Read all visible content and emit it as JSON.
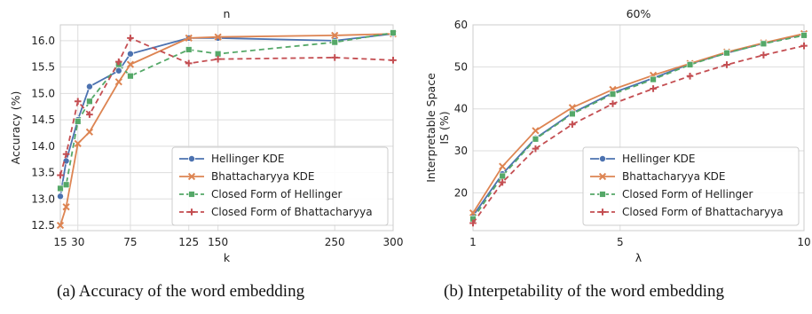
{
  "colors": {
    "hellinger_kde": "#4c72b0",
    "bhattacharyya_kde": "#dd8452",
    "closed_hellinger": "#55a868",
    "closed_bhattacharyya": "#c44e52",
    "plot_bg": "#ffffff",
    "grid": "#dddddd"
  },
  "legend_labels": [
    "Hellinger KDE",
    "Bhattacharyya KDE",
    "Closed Form of Hellinger",
    "Closed Form of Bhattacharyya"
  ],
  "captions": {
    "left": "(a) Accuracy of the word embedding",
    "right": "(b) Interpetability of the word embedding"
  },
  "chart_data": [
    {
      "type": "line",
      "title": "n",
      "xlabel": "k",
      "ylabel": "Accuracy (%)",
      "xlim": [
        15,
        300
      ],
      "ylim": [
        12.4,
        16.3
      ],
      "xticks": [
        15,
        30,
        75,
        125,
        150,
        250,
        300
      ],
      "yticks": [
        12.5,
        13.0,
        13.5,
        14.0,
        14.5,
        15.0,
        15.5,
        16.0
      ],
      "ytick_labels": [
        "12.5",
        "13.0",
        "13.5",
        "14.0",
        "14.5",
        "15.0",
        "15.5",
        "16.0"
      ],
      "grid": true,
      "legend_position": "lower-right",
      "series": [
        {
          "name": "Hellinger KDE",
          "marker": "circle",
          "dash": "solid",
          "color_key": "hellinger_kde",
          "x": [
            15,
            20,
            30,
            40,
            65,
            75,
            125,
            150,
            250,
            300
          ],
          "y": [
            13.05,
            13.72,
            14.5,
            15.13,
            15.43,
            15.75,
            16.05,
            16.05,
            16.0,
            16.13
          ]
        },
        {
          "name": "Bhattacharyya KDE",
          "marker": "x",
          "dash": "solid",
          "color_key": "bhattacharyya_kde",
          "x": [
            15,
            20,
            30,
            40,
            65,
            75,
            125,
            150,
            250,
            300
          ],
          "y": [
            12.5,
            12.85,
            14.05,
            14.27,
            15.22,
            15.55,
            16.05,
            16.07,
            16.1,
            16.13
          ]
        },
        {
          "name": "Closed Form of Hellinger",
          "marker": "square",
          "dash": "dashed",
          "color_key": "closed_hellinger",
          "x": [
            15,
            20,
            30,
            40,
            65,
            75,
            125,
            150,
            250,
            300
          ],
          "y": [
            13.2,
            13.27,
            14.47,
            14.85,
            15.55,
            15.33,
            15.83,
            15.75,
            15.97,
            16.15
          ]
        },
        {
          "name": "Closed Form of Bhattacharyya",
          "marker": "plus",
          "dash": "dashed",
          "color_key": "closed_bhattacharyya",
          "x": [
            15,
            20,
            30,
            40,
            65,
            75,
            125,
            150,
            250,
            300
          ],
          "y": [
            13.45,
            13.85,
            14.85,
            14.6,
            15.6,
            16.05,
            15.57,
            15.65,
            15.68,
            15.63
          ]
        }
      ]
    },
    {
      "type": "line",
      "title": "60%",
      "xlabel": "λ",
      "ylabel_lines": [
        "Interpretable Space",
        "IS (%)"
      ],
      "xlim": [
        1,
        10
      ],
      "ylim": [
        11,
        60
      ],
      "xticks": [
        1,
        5,
        10
      ],
      "yticks": [
        20,
        30,
        40,
        50,
        60
      ],
      "grid": true,
      "legend_position": "lower-right",
      "series": [
        {
          "name": "Hellinger KDE",
          "marker": "circle",
          "dash": "solid",
          "color_key": "hellinger_kde",
          "x": [
            1,
            1.8,
            2.7,
            3.7,
            4.8,
            5.9,
            6.9,
            7.9,
            8.9,
            10
          ],
          "y": [
            14.5,
            24.5,
            33.0,
            39.0,
            43.8,
            47.3,
            50.7,
            53.3,
            55.6,
            57.8
          ]
        },
        {
          "name": "Bhattacharyya KDE",
          "marker": "x",
          "dash": "solid",
          "color_key": "bhattacharyya_kde",
          "x": [
            1,
            1.8,
            2.7,
            3.7,
            4.8,
            5.9,
            6.9,
            7.9,
            8.9,
            10
          ],
          "y": [
            15.2,
            26.3,
            34.8,
            40.3,
            44.6,
            48.0,
            50.8,
            53.5,
            55.7,
            57.9
          ]
        },
        {
          "name": "Closed Form of Hellinger",
          "marker": "square",
          "dash": "dashed",
          "color_key": "closed_hellinger",
          "x": [
            1,
            1.8,
            2.7,
            3.7,
            4.8,
            5.9,
            6.9,
            7.9,
            8.9,
            10
          ],
          "y": [
            13.8,
            24.0,
            32.8,
            38.8,
            43.5,
            47.0,
            50.5,
            53.3,
            55.5,
            57.5
          ]
        },
        {
          "name": "Closed Form of Bhattacharyya",
          "marker": "plus",
          "dash": "dashed",
          "color_key": "closed_bhattacharyya",
          "x": [
            1,
            1.8,
            2.7,
            3.7,
            4.8,
            5.9,
            6.9,
            7.9,
            8.9,
            10
          ],
          "y": [
            12.8,
            22.5,
            30.5,
            36.3,
            41.2,
            44.8,
            47.8,
            50.5,
            52.8,
            55.0
          ]
        }
      ]
    }
  ]
}
